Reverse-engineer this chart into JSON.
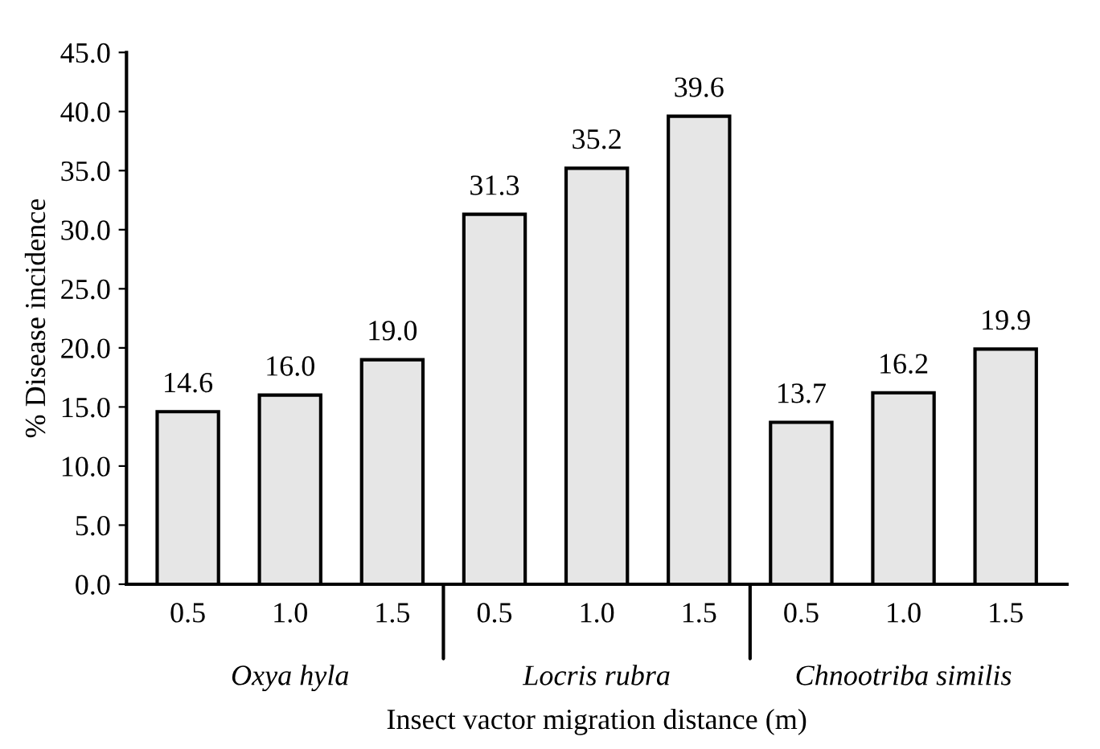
{
  "chart_data": {
    "type": "bar",
    "xlabel": "Insect vactor migration distance (m)",
    "ylabel": "% Disease incidence",
    "categories": [
      "0.5",
      "1.0",
      "1.5",
      "0.5",
      "1.0",
      "1.5",
      "0.5",
      "1.0",
      "1.5"
    ],
    "values": [
      14.6,
      16.0,
      19.0,
      31.3,
      35.2,
      39.6,
      13.7,
      16.2,
      19.9
    ],
    "color": "#e6e6e6",
    "value_labels": [
      "14.6",
      "16.0",
      "19.0",
      "31.3",
      "35.2",
      "39.6",
      "13.7",
      "16.2",
      "19.9"
    ],
    "ylim": [
      0,
      45
    ],
    "yticks": [
      {
        "value": 0,
        "label": "0.0"
      },
      {
        "value": 5,
        "label": "5.0"
      },
      {
        "value": 10,
        "label": "10.0"
      },
      {
        "value": 15,
        "label": "15.0"
      },
      {
        "value": 20,
        "label": "20.0"
      },
      {
        "value": 25,
        "label": "25.0"
      },
      {
        "value": 30,
        "label": "30.0"
      },
      {
        "value": 35,
        "label": "35.0"
      },
      {
        "value": 40,
        "label": "40.0"
      },
      {
        "value": 45,
        "label": "45.0"
      }
    ],
    "annotations": [
      "Oxya hyla",
      "Locris rubra",
      "Chnootriba similis"
    ],
    "grid": false,
    "legend": false
  }
}
